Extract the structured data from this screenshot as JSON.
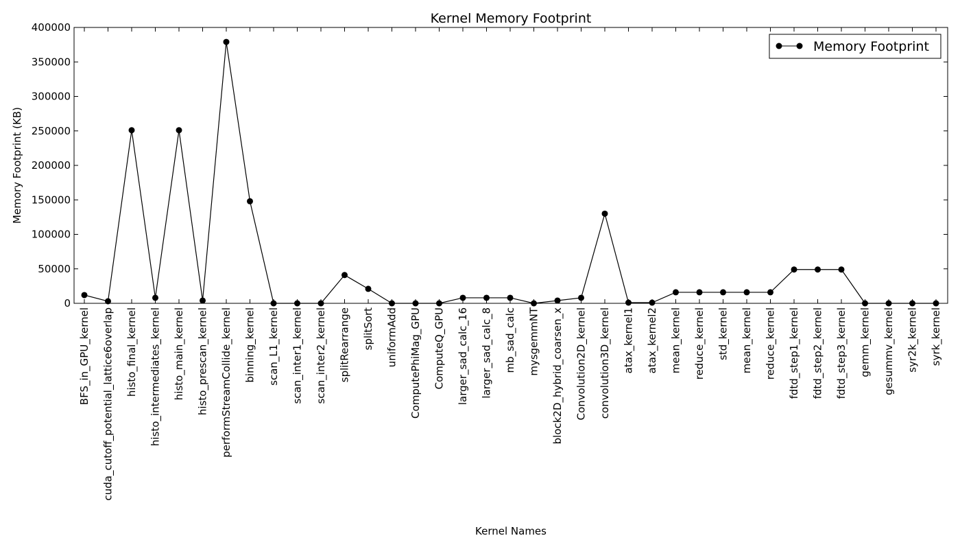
{
  "chart_data": {
    "type": "line",
    "title": "Kernel Memory Footprint",
    "xlabel": "Kernel Names",
    "ylabel": "Memory Footprint (KB)",
    "ylim": [
      0,
      400000
    ],
    "yticks": [
      "0",
      "50000",
      "100000",
      "150000",
      "200000",
      "250000",
      "300000",
      "350000",
      "400000"
    ],
    "grid": false,
    "legend": "top-right",
    "categories": [
      "BFS_in_GPU_kernel",
      "cuda_cutoff_potential_lattice6overlap",
      "histo_final_kernel",
      "histo_intermediates_kernel",
      "histo_main_kernel",
      "histo_prescan_kernel",
      "performStreamCollide_kernel",
      "binning_kernel",
      "scan_L1_kernel",
      "scan_inter1_kernel",
      "scan_inter2_kernel",
      "splitRearrange",
      "splitSort",
      "uniformAdd",
      "ComputePhiMag_GPU",
      "ComputeQ_GPU",
      "larger_sad_calc_16",
      "larger_sad_calc_8",
      "mb_sad_calc",
      "mysgemmNT",
      "block2D_hybrid_coarsen_x",
      "Convolution2D_kernel",
      "convolution3D_kernel",
      "atax_kernel1",
      "atax_kernel2",
      "mean_kernel",
      "reduce_kernel",
      "std_kernel",
      "mean_kernel",
      "reduce_kernel",
      "fdtd_step1_kernel",
      "fdtd_step2_kernel",
      "fdtd_step3_kernel",
      "gemm_kernel",
      "gesummv_kernel",
      "syr2k_kernel",
      "syrk_kernel"
    ],
    "series": [
      {
        "name": "Memory Footprint",
        "color": "#000000",
        "values": [
          12000,
          3000,
          251000,
          8000,
          251000,
          4000,
          379000,
          148000,
          0,
          0,
          0,
          41000,
          21000,
          0,
          0,
          0,
          8000,
          8000,
          8000,
          0,
          4000,
          8000,
          130000,
          1000,
          1000,
          16000,
          16000,
          16000,
          16000,
          16000,
          49000,
          49000,
          49000,
          0,
          0,
          0,
          0
        ]
      }
    ]
  }
}
